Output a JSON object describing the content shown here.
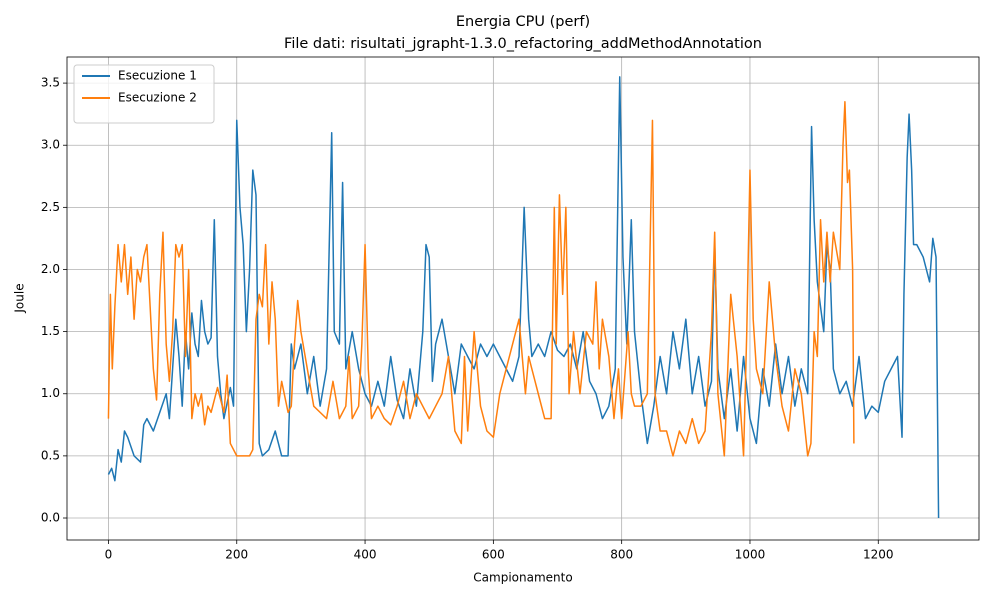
{
  "chart_data": {
    "type": "line",
    "title": "Energia CPU (perf)",
    "subtitle": "File dati: risultati_jgrapht-1.3.0_refactoring_addMethodAnnotation",
    "xlabel": "Campionamento",
    "ylabel": "Joule",
    "xlim": [
      -64.6,
      1357
    ],
    "ylim": [
      -0.177,
      3.71
    ],
    "xticks": [
      0,
      200,
      400,
      600,
      800,
      1000,
      1200
    ],
    "yticks": [
      {
        "value": 0,
        "label": "0.0"
      },
      0.5,
      {
        "value": 1,
        "label": "1.0"
      },
      1.5,
      {
        "value": 2,
        "label": "2.0"
      },
      2.5,
      {
        "value": 3,
        "label": "3.0"
      },
      3.5
    ],
    "grid": true,
    "legend": "upper left",
    "series": [
      {
        "name": "Esecuzione 1",
        "color": "#1f77b4",
        "x": [
          0,
          5,
          10,
          15,
          20,
          25,
          30,
          40,
          50,
          55,
          60,
          70,
          80,
          90,
          95,
          100,
          105,
          110,
          115,
          120,
          125,
          130,
          135,
          140,
          145,
          150,
          155,
          160,
          165,
          170,
          175,
          180,
          190,
          195,
          200,
          205,
          210,
          215,
          220,
          225,
          230,
          235,
          240,
          250,
          260,
          270,
          280,
          285,
          290,
          300,
          310,
          320,
          330,
          340,
          348,
          352,
          360,
          365,
          370,
          380,
          390,
          400,
          410,
          420,
          430,
          440,
          450,
          460,
          470,
          480,
          490,
          495,
          500,
          505,
          510,
          520,
          530,
          540,
          550,
          560,
          570,
          580,
          590,
          600,
          610,
          620,
          630,
          640,
          648,
          655,
          660,
          670,
          680,
          690,
          700,
          710,
          720,
          730,
          740,
          750,
          760,
          770,
          780,
          790,
          797,
          802,
          808,
          815,
          820,
          830,
          840,
          850,
          860,
          870,
          880,
          890,
          900,
          910,
          920,
          930,
          940,
          945,
          950,
          960,
          970,
          980,
          990,
          1000,
          1010,
          1020,
          1030,
          1040,
          1050,
          1060,
          1070,
          1080,
          1090,
          1096,
          1100,
          1105,
          1115,
          1120,
          1125,
          1130,
          1140,
          1150,
          1160,
          1170,
          1180,
          1190,
          1200,
          1210,
          1220,
          1230,
          1237,
          1240,
          1245,
          1248,
          1252,
          1255,
          1260,
          1270,
          1280,
          1285,
          1290,
          1294
        ],
        "values": [
          0.35,
          0.4,
          0.3,
          0.55,
          0.45,
          0.7,
          0.65,
          0.5,
          0.45,
          0.75,
          0.8,
          0.7,
          0.85,
          1.0,
          0.8,
          1.2,
          1.6,
          1.3,
          0.9,
          1.5,
          1.2,
          1.65,
          1.4,
          1.3,
          1.75,
          1.5,
          1.4,
          1.45,
          2.4,
          1.3,
          1.0,
          0.8,
          1.05,
          0.9,
          3.2,
          2.5,
          2.2,
          1.5,
          2.0,
          2.8,
          2.6,
          0.6,
          0.5,
          0.55,
          0.7,
          0.5,
          0.5,
          1.4,
          1.2,
          1.4,
          1.0,
          1.3,
          0.9,
          1.2,
          3.1,
          1.5,
          1.4,
          2.7,
          1.2,
          1.5,
          1.2,
          1.0,
          0.9,
          1.1,
          0.9,
          1.3,
          0.95,
          0.8,
          1.2,
          0.9,
          1.5,
          2.2,
          2.1,
          1.1,
          1.4,
          1.6,
          1.3,
          1.0,
          1.4,
          1.3,
          1.2,
          1.4,
          1.3,
          1.4,
          1.3,
          1.2,
          1.1,
          1.3,
          2.5,
          1.6,
          1.3,
          1.4,
          1.3,
          1.5,
          1.35,
          1.3,
          1.4,
          1.2,
          1.5,
          1.1,
          1.0,
          0.8,
          0.9,
          1.2,
          3.55,
          2.1,
          1.4,
          2.4,
          1.5,
          1.0,
          0.6,
          0.9,
          1.3,
          1.0,
          1.5,
          1.2,
          1.6,
          1.0,
          1.3,
          0.9,
          1.1,
          2.2,
          1.2,
          0.8,
          1.2,
          0.7,
          1.3,
          0.8,
          0.6,
          1.2,
          0.9,
          1.4,
          1.0,
          1.3,
          0.9,
          1.2,
          1.0,
          3.15,
          2.4,
          1.9,
          1.5,
          2.2,
          2.0,
          1.2,
          1.0,
          1.1,
          0.9,
          1.3,
          0.8,
          0.9,
          0.85,
          1.1,
          1.2,
          1.3,
          0.65,
          1.8,
          2.9,
          3.25,
          2.8,
          2.2,
          2.2,
          2.1,
          1.9,
          2.25,
          2.1,
          0.0
        ]
      },
      {
        "name": "Esecuzione 2",
        "color": "#ff7f0e",
        "x": [
          0,
          3,
          6,
          10,
          15,
          20,
          25,
          30,
          35,
          40,
          45,
          50,
          55,
          60,
          65,
          70,
          75,
          80,
          85,
          90,
          95,
          100,
          105,
          110,
          115,
          120,
          125,
          130,
          135,
          140,
          145,
          150,
          155,
          160,
          170,
          180,
          185,
          190,
          200,
          210,
          220,
          225,
          230,
          235,
          240,
          245,
          250,
          255,
          260,
          265,
          270,
          280,
          285,
          290,
          295,
          300,
          310,
          320,
          330,
          340,
          350,
          360,
          370,
          375,
          380,
          390,
          395,
          400,
          405,
          410,
          420,
          430,
          440,
          450,
          460,
          470,
          480,
          490,
          500,
          510,
          520,
          530,
          540,
          550,
          555,
          560,
          570,
          580,
          590,
          600,
          610,
          620,
          630,
          640,
          650,
          655,
          660,
          670,
          680,
          690,
          695,
          698,
          703,
          708,
          713,
          718,
          725,
          735,
          745,
          755,
          760,
          765,
          770,
          780,
          788,
          795,
          800,
          810,
          815,
          820,
          830,
          840,
          848,
          852,
          860,
          870,
          880,
          890,
          900,
          910,
          920,
          930,
          940,
          945,
          950,
          960,
          970,
          980,
          990,
          995,
          1000,
          1005,
          1010,
          1020,
          1030,
          1040,
          1050,
          1060,
          1070,
          1080,
          1090,
          1095,
          1100,
          1105,
          1110,
          1115,
          1120,
          1125,
          1130,
          1140,
          1145,
          1148,
          1152,
          1155,
          1160,
          1162
        ],
        "values": [
          0.8,
          1.8,
          1.2,
          1.7,
          2.2,
          1.9,
          2.2,
          1.8,
          2.1,
          1.6,
          2.0,
          1.9,
          2.1,
          2.2,
          1.7,
          1.2,
          0.95,
          1.8,
          2.3,
          1.4,
          1.1,
          1.5,
          2.2,
          2.1,
          2.2,
          1.3,
          2.0,
          0.8,
          1.0,
          0.9,
          1.0,
          0.75,
          0.9,
          0.85,
          1.05,
          0.85,
          1.15,
          0.6,
          0.5,
          0.5,
          0.5,
          0.55,
          1.6,
          1.8,
          1.7,
          2.2,
          1.4,
          1.9,
          1.6,
          0.9,
          1.1,
          0.85,
          0.9,
          1.4,
          1.75,
          1.5,
          1.2,
          0.9,
          0.85,
          0.8,
          1.1,
          0.8,
          0.9,
          1.3,
          0.8,
          0.9,
          1.4,
          2.2,
          1.2,
          0.8,
          0.9,
          0.8,
          0.75,
          0.9,
          1.1,
          0.8,
          1.0,
          0.9,
          0.8,
          0.9,
          1.0,
          1.3,
          0.7,
          0.6,
          1.3,
          0.7,
          1.5,
          0.9,
          0.7,
          0.65,
          1.0,
          1.2,
          1.4,
          1.6,
          1.0,
          1.3,
          1.2,
          1.0,
          0.8,
          0.8,
          2.5,
          1.4,
          2.6,
          1.8,
          2.5,
          1.0,
          1.5,
          1.0,
          1.5,
          1.4,
          1.9,
          1.2,
          1.6,
          1.3,
          0.8,
          1.2,
          0.8,
          1.5,
          1.0,
          0.9,
          0.9,
          1.0,
          3.2,
          1.0,
          0.7,
          0.7,
          0.5,
          0.7,
          0.6,
          0.8,
          0.6,
          0.7,
          1.5,
          2.3,
          1.0,
          0.5,
          1.8,
          1.3,
          0.5,
          1.5,
          2.8,
          1.6,
          1.2,
          1.0,
          1.9,
          1.3,
          0.9,
          0.7,
          1.2,
          1.0,
          0.5,
          0.6,
          1.5,
          1.3,
          2.4,
          1.9,
          2.3,
          1.9,
          2.3,
          2.0,
          3.0,
          3.35,
          2.7,
          2.8,
          2.0,
          0.6
        ]
      }
    ]
  }
}
